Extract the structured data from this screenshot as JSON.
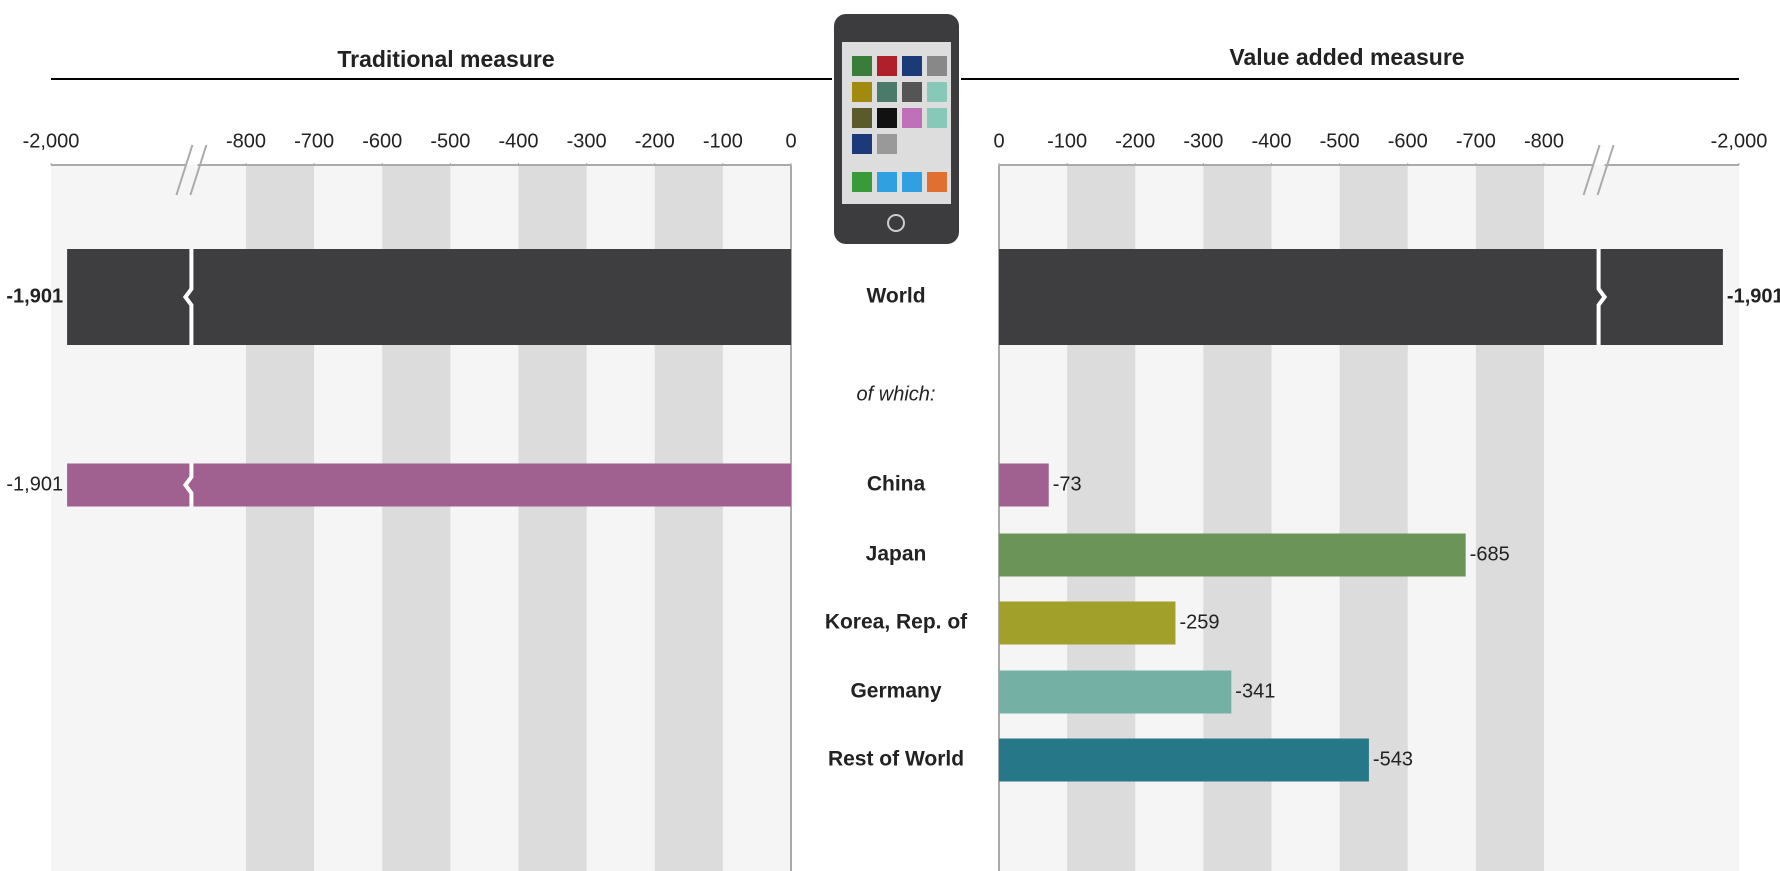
{
  "chart_data": {
    "type": "bar",
    "categories": [
      "World",
      "China",
      "Japan",
      "Korea, Rep. of",
      "Germany",
      "Rest of World"
    ],
    "annotation": "of which:",
    "colors": [
      "#3e3e40",
      "#a06090",
      "#6a9458",
      "#a0a02a",
      "#74b0a4",
      "#267888"
    ],
    "series": [
      {
        "name": "Traditional measure",
        "values": [
          -1901,
          -1901,
          null,
          null,
          null,
          null
        ],
        "value_labels": [
          "-1,901",
          "-1,901",
          null,
          null,
          null,
          null
        ]
      },
      {
        "name": "Value added measure",
        "values": [
          -1901,
          -73,
          -685,
          -259,
          -341,
          -543
        ],
        "value_labels": [
          "-1,901",
          "-73",
          "-685",
          "-259",
          "-341",
          "-543"
        ]
      }
    ],
    "xlim": [
      0,
      -2000
    ],
    "xticks": [
      {
        "value": -2000,
        "label": "-2,000"
      },
      -800,
      -700,
      -600,
      -500,
      -400,
      -300,
      -200,
      -100,
      0
    ],
    "axis_break": true
  }
}
